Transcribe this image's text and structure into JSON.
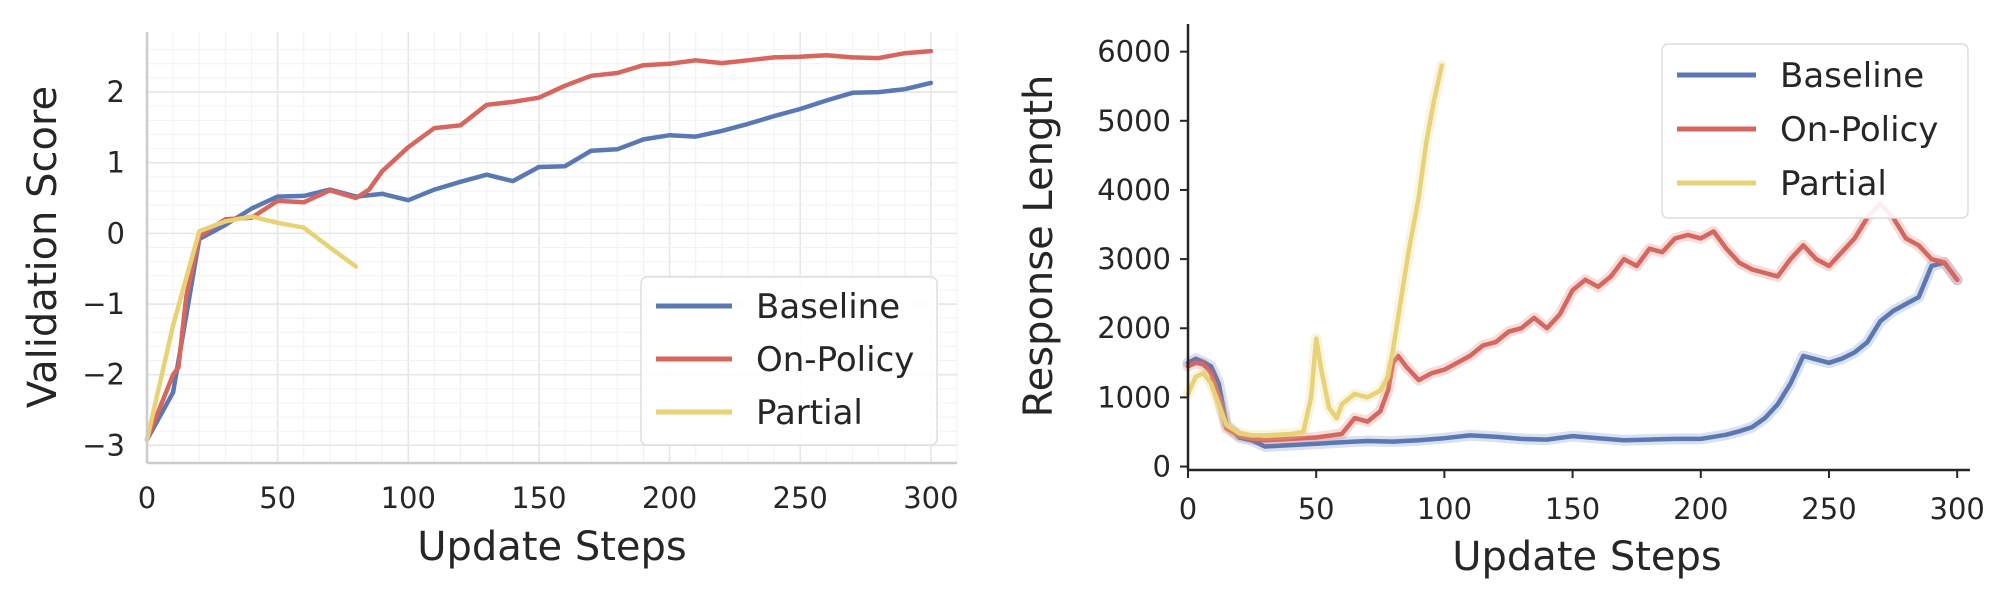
{
  "colors": {
    "baseline": "#5a78b4",
    "on_policy": "#d6665e",
    "partial": "#e8d276"
  },
  "chart_data": [
    {
      "type": "line",
      "xlabel": "Update Steps",
      "ylabel": "Validation Score",
      "xlim": [
        0,
        310
      ],
      "ylim": [
        -3.25,
        2.85
      ],
      "xticks": [
        0,
        50,
        100,
        150,
        200,
        250,
        300
      ],
      "xtick_labels": [
        "0",
        "50",
        "100",
        "150",
        "200",
        "250",
        "300"
      ],
      "yticks": [
        -3,
        -2,
        -1,
        0,
        1,
        2
      ],
      "ytick_labels": [
        "−3",
        "−2",
        "−1",
        "0",
        "1",
        "2"
      ],
      "grid": true,
      "legend_position": "lower-right",
      "series": [
        {
          "name": "Baseline",
          "x": [
            0,
            10,
            20,
            30,
            40,
            50,
            60,
            70,
            80,
            90,
            100,
            110,
            120,
            130,
            140,
            150,
            160,
            170,
            180,
            190,
            200,
            210,
            220,
            230,
            240,
            250,
            260,
            270,
            280,
            290,
            300
          ],
          "y": [
            -2.92,
            -2.25,
            -0.08,
            0.12,
            0.35,
            0.52,
            0.53,
            0.62,
            0.52,
            0.56,
            0.47,
            0.62,
            0.73,
            0.83,
            0.74,
            0.94,
            0.95,
            1.17,
            1.19,
            1.33,
            1.39,
            1.37,
            1.45,
            1.55,
            1.66,
            1.76,
            1.88,
            1.99,
            2.0,
            2.04,
            2.13
          ]
        },
        {
          "name": "On-Policy",
          "x": [
            0,
            10,
            12,
            15,
            20,
            25,
            30,
            40,
            50,
            60,
            70,
            80,
            85,
            90,
            100,
            110,
            120,
            130,
            140,
            150,
            160,
            170,
            180,
            190,
            200,
            210,
            220,
            230,
            240,
            250,
            260,
            270,
            280,
            290,
            300
          ],
          "y": [
            -2.92,
            -2.0,
            -1.9,
            -0.9,
            -0.05,
            0.08,
            0.2,
            0.22,
            0.46,
            0.44,
            0.61,
            0.5,
            0.62,
            0.88,
            1.22,
            1.49,
            1.53,
            1.82,
            1.86,
            1.92,
            2.09,
            2.23,
            2.27,
            2.38,
            2.4,
            2.45,
            2.41,
            2.45,
            2.49,
            2.5,
            2.52,
            2.49,
            2.48,
            2.55,
            2.58
          ]
        },
        {
          "name": "Partial",
          "x": [
            0,
            10,
            20,
            30,
            40,
            50,
            60,
            70,
            80
          ],
          "y": [
            -2.92,
            -1.3,
            0.03,
            0.17,
            0.24,
            0.15,
            0.08,
            -0.2,
            -0.47
          ]
        }
      ]
    },
    {
      "type": "line",
      "xlabel": "Update Steps",
      "ylabel": "Response Length",
      "xlim": [
        0,
        305
      ],
      "ylim": [
        -50,
        6400
      ],
      "xticks": [
        0,
        50,
        100,
        150,
        200,
        250,
        300
      ],
      "xtick_labels": [
        "0",
        "50",
        "100",
        "150",
        "200",
        "250",
        "300"
      ],
      "yticks": [
        0,
        1000,
        2000,
        3000,
        4000,
        5000,
        6000
      ],
      "ytick_labels": [
        "0",
        "1000",
        "2000",
        "3000",
        "4000",
        "5000",
        "6000"
      ],
      "grid": false,
      "legend_position": "upper-right",
      "series": [
        {
          "name": "Baseline",
          "x": [
            0,
            3,
            6,
            9,
            12,
            15,
            20,
            25,
            30,
            40,
            50,
            60,
            70,
            80,
            90,
            100,
            110,
            120,
            130,
            140,
            150,
            160,
            170,
            180,
            190,
            200,
            205,
            210,
            215,
            220,
            225,
            230,
            235,
            240,
            245,
            250,
            255,
            260,
            265,
            270,
            275,
            280,
            285,
            290,
            295,
            300
          ],
          "y": [
            1500,
            1560,
            1510,
            1450,
            1200,
            600,
            420,
            380,
            290,
            310,
            330,
            350,
            370,
            360,
            380,
            410,
            450,
            430,
            400,
            390,
            440,
            410,
            380,
            390,
            400,
            400,
            430,
            460,
            510,
            570,
            700,
            900,
            1200,
            1600,
            1550,
            1500,
            1560,
            1650,
            1800,
            2100,
            2250,
            2350,
            2450,
            2900,
            2950,
            2700
          ]
        },
        {
          "name": "On-Policy",
          "x": [
            0,
            3,
            6,
            9,
            12,
            15,
            20,
            25,
            30,
            40,
            50,
            60,
            65,
            70,
            75,
            78,
            80,
            82,
            85,
            90,
            95,
            100,
            105,
            110,
            115,
            120,
            125,
            130,
            135,
            140,
            145,
            150,
            155,
            160,
            165,
            170,
            175,
            180,
            185,
            190,
            195,
            200,
            205,
            210,
            215,
            220,
            225,
            230,
            235,
            240,
            245,
            250,
            255,
            260,
            265,
            270,
            275,
            280,
            285,
            290,
            295,
            300
          ],
          "y": [
            1450,
            1500,
            1480,
            1350,
            1000,
            550,
            450,
            400,
            380,
            400,
            420,
            470,
            700,
            650,
            800,
            1100,
            1500,
            1600,
            1450,
            1250,
            1350,
            1400,
            1500,
            1600,
            1750,
            1800,
            1950,
            2000,
            2150,
            2000,
            2200,
            2550,
            2700,
            2600,
            2750,
            3000,
            2900,
            3150,
            3100,
            3300,
            3350,
            3300,
            3400,
            3150,
            2950,
            2850,
            2800,
            2750,
            3000,
            3200,
            3000,
            2900,
            3100,
            3300,
            3600,
            3800,
            3600,
            3300,
            3200,
            3000,
            2950,
            2700
          ]
        },
        {
          "name": "Partial",
          "x": [
            0,
            3,
            6,
            9,
            12,
            15,
            20,
            25,
            30,
            35,
            40,
            45,
            48,
            50,
            52,
            55,
            58,
            60,
            65,
            70,
            75,
            78,
            80,
            83,
            86,
            90,
            93,
            96,
            99
          ],
          "y": [
            1050,
            1300,
            1350,
            1200,
            900,
            600,
            480,
            450,
            450,
            460,
            470,
            500,
            1000,
            1850,
            1400,
            850,
            700,
            900,
            1050,
            1000,
            1100,
            1300,
            1700,
            2400,
            3100,
            3900,
            4700,
            5300,
            5800
          ]
        }
      ]
    }
  ]
}
